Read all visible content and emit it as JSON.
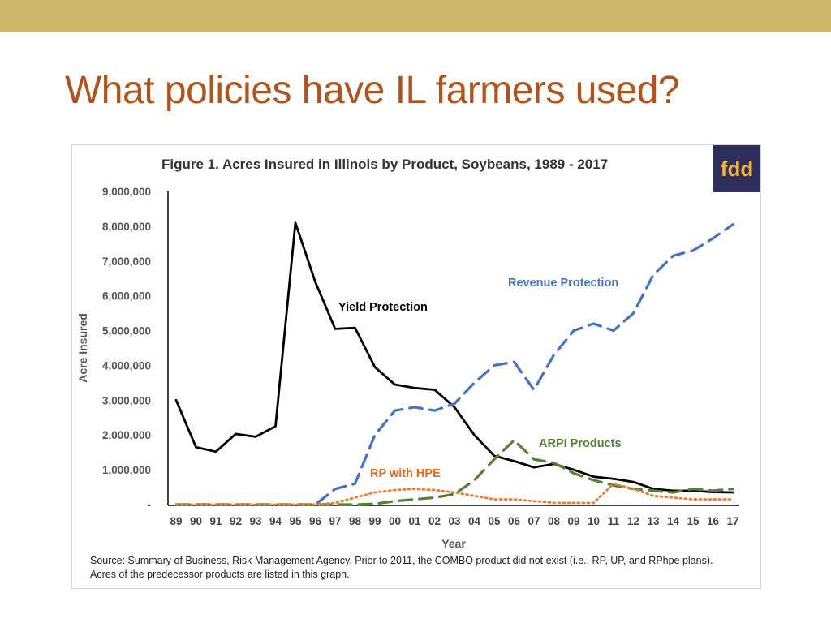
{
  "slide": {
    "title": "What policies have IL farmers used?"
  },
  "figure": {
    "logo_text": "fdd",
    "source_text": "Source:  Summary of Business, Risk Management Agency.  Prior to 2011, the COMBO product did not exist (i.e., RP, UP, and RPhpe plans).  Acres of the predecessor products are listed in this graph."
  },
  "colors": {
    "top_bar": "#cdb66a",
    "title": "#b1531c",
    "logo_bg": "#2e2f5e",
    "logo_text": "#f2b233"
  },
  "chart_data": {
    "type": "line",
    "title": "Figure 1. Acres Insured in Illinois by Product, Soybeans, 1989 - 2017",
    "xlabel": "Year",
    "ylabel": "Acre Insured",
    "ylim": [
      0,
      9000000
    ],
    "yticks": [
      "-",
      "1,000,000",
      "2,000,000",
      "3,000,000",
      "4,000,000",
      "5,000,000",
      "6,000,000",
      "7,000,000",
      "8,000,000",
      "9,000,000"
    ],
    "x": [
      "89",
      "90",
      "91",
      "92",
      "93",
      "94",
      "95",
      "96",
      "97",
      "98",
      "99",
      "00",
      "01",
      "02",
      "03",
      "04",
      "05",
      "06",
      "07",
      "08",
      "09",
      "10",
      "11",
      "12",
      "13",
      "14",
      "15",
      "16",
      "17"
    ],
    "grid": false,
    "series": [
      {
        "name": "Yield Protection",
        "color": "#000000",
        "style": "solid",
        "values": [
          3000000,
          1650000,
          1520000,
          2030000,
          1950000,
          2250000,
          8100000,
          6400000,
          5050000,
          5080000,
          3950000,
          3450000,
          3350000,
          3300000,
          2800000,
          2000000,
          1400000,
          1250000,
          1070000,
          1170000,
          1000000,
          800000,
          740000,
          650000,
          450000,
          400000,
          400000,
          360000,
          350000
        ]
      },
      {
        "name": "Revenue Protection",
        "color": "#4472c4",
        "style": "dashed",
        "values": [
          0,
          0,
          0,
          0,
          0,
          0,
          0,
          0,
          450000,
          600000,
          2000000,
          2700000,
          2800000,
          2700000,
          2900000,
          3500000,
          4000000,
          4100000,
          3300000,
          4300000,
          5000000,
          5200000,
          5000000,
          5500000,
          6600000,
          7150000,
          7300000,
          7650000,
          8050000
        ]
      },
      {
        "name": "ARPI Products",
        "color": "#548235",
        "style": "dashed",
        "values": [
          0,
          0,
          0,
          0,
          0,
          0,
          0,
          0,
          0,
          0,
          20000,
          100000,
          150000,
          200000,
          300000,
          700000,
          1300000,
          1850000,
          1300000,
          1200000,
          900000,
          700000,
          550000,
          450000,
          400000,
          350000,
          450000,
          400000,
          450000
        ]
      },
      {
        "name": "RP with HPE",
        "color": "#ed7d31",
        "style": "dotted",
        "values": [
          0,
          0,
          0,
          0,
          0,
          0,
          0,
          0,
          50000,
          200000,
          350000,
          420000,
          450000,
          420000,
          350000,
          250000,
          150000,
          150000,
          100000,
          50000,
          50000,
          50000,
          600000,
          450000,
          250000,
          200000,
          150000,
          150000,
          150000
        ]
      }
    ],
    "annotations": [
      {
        "text": "Yield Protection",
        "color": "#000000"
      },
      {
        "text": "Revenue Protection",
        "color": "#4472c4"
      },
      {
        "text": "ARPI Products",
        "color": "#548235"
      },
      {
        "text": "RP with HPE",
        "color": "#e06a1f"
      }
    ]
  }
}
